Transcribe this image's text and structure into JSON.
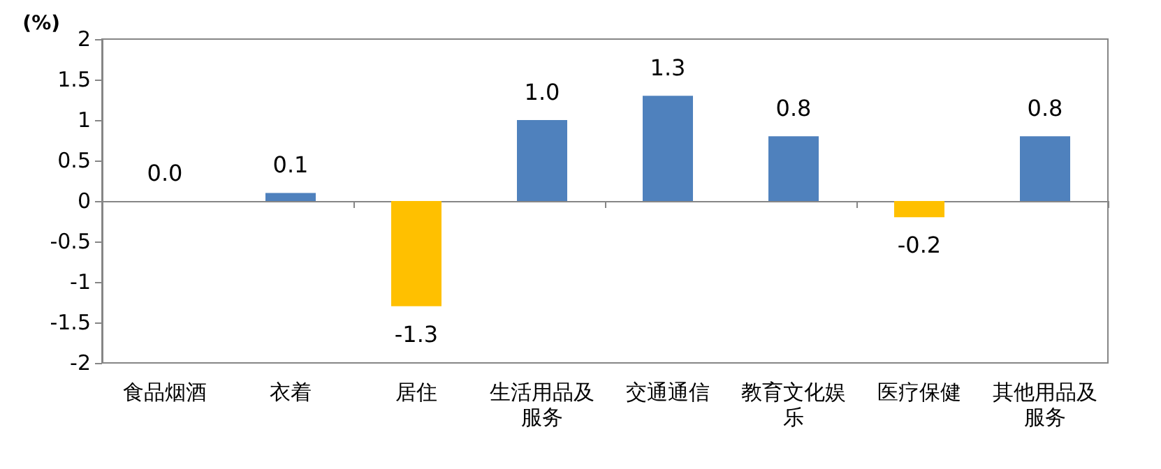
{
  "chart_data": {
    "type": "bar",
    "ylabel": "(%)",
    "categories": [
      "食品烟酒",
      "衣着",
      "居住",
      "生活用品及服务",
      "交通通信",
      "教育文化娱乐",
      "医疗保健",
      "其他用品及服务"
    ],
    "values": [
      0.0,
      0.1,
      -1.3,
      1.0,
      1.3,
      0.8,
      -0.2,
      0.8
    ],
    "colors": [
      "#4f81bd",
      "#4f81bd",
      "#ffc000",
      "#4f81bd",
      "#4f81bd",
      "#4f81bd",
      "#ffc000",
      "#4f81bd"
    ],
    "value_labels": [
      "0.0",
      "0.1",
      "-1.3",
      "1.0",
      "1.3",
      "0.8",
      "-0.2",
      "0.8"
    ],
    "ylim": [
      -2,
      2
    ],
    "yticks": [
      -2,
      -1.5,
      -1,
      -0.5,
      0,
      0.5,
      1,
      1.5,
      2
    ]
  }
}
